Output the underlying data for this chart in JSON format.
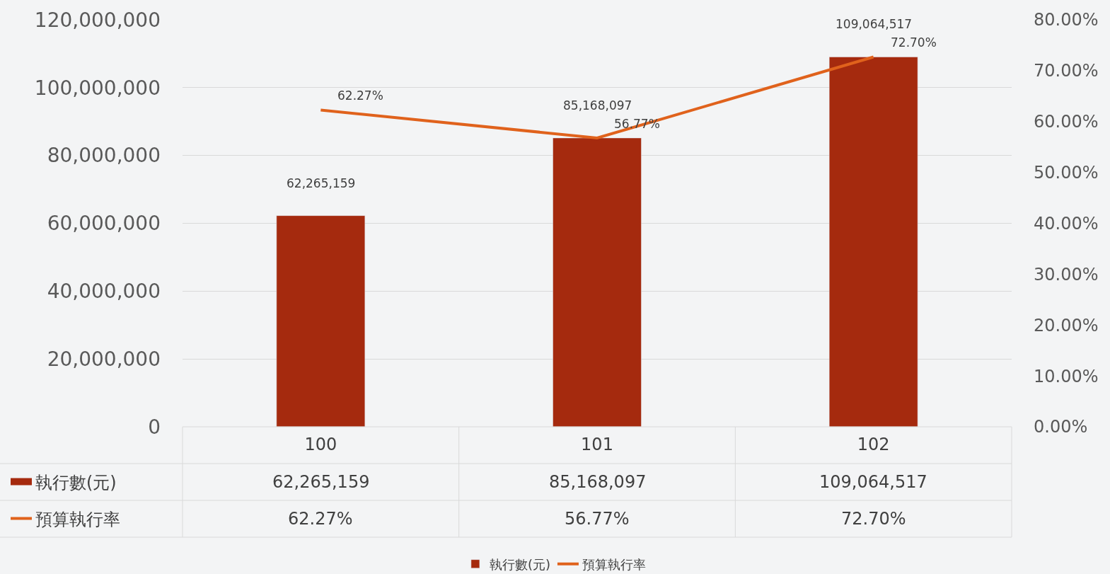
{
  "chart_data": {
    "type": "bar",
    "categories": [
      "100",
      "101",
      "102"
    ],
    "series": [
      {
        "name": "執行數(元)",
        "color": "#a52a0e",
        "values": [
          62265159,
          85168097,
          109064517
        ],
        "value_labels": [
          "62,265,159",
          "85,168,097",
          "109,064,517"
        ]
      },
      {
        "name": "預算執行率",
        "type": "line",
        "axis": "y2",
        "color": "#e0621c",
        "values": [
          62.27,
          56.77,
          72.7
        ],
        "value_labels": [
          "62.27%",
          "56.77%",
          "72.70%"
        ]
      }
    ],
    "ylim": [
      0,
      120000000
    ],
    "yticks": [
      {
        "value": 0,
        "label": "0"
      },
      {
        "value": 20000000,
        "label": "20,000,000"
      },
      {
        "value": 40000000,
        "label": "40,000,000"
      },
      {
        "value": 60000000,
        "label": "60,000,000"
      },
      {
        "value": 80000000,
        "label": "80,000,000"
      },
      {
        "value": 100000000,
        "label": "100,000,000"
      },
      {
        "value": 120000000,
        "label": "120,000,000"
      }
    ],
    "y2lim": [
      0,
      80
    ],
    "y2ticks": [
      {
        "value": 0,
        "label": "0.00%"
      },
      {
        "value": 10,
        "label": "10.00%"
      },
      {
        "value": 20,
        "label": "20.00%"
      },
      {
        "value": 30,
        "label": "30.00%"
      },
      {
        "value": 40,
        "label": "40.00%"
      },
      {
        "value": 50,
        "label": "50.00%"
      },
      {
        "value": 60,
        "label": "60.00%"
      },
      {
        "value": 70,
        "label": "70.00%"
      },
      {
        "value": 80,
        "label": "80.00%"
      }
    ],
    "grid": "y",
    "legend": "bottom",
    "line_style": "solid"
  }
}
